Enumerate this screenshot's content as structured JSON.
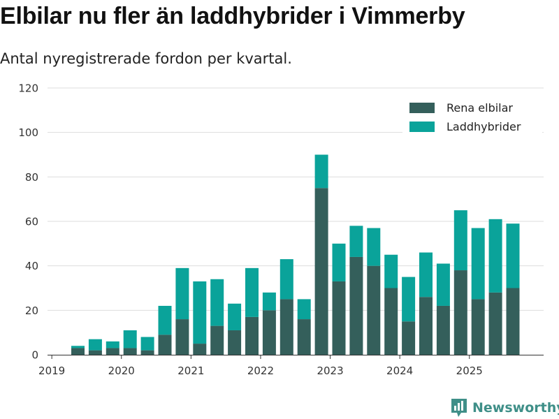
{
  "title": "Elbilar nu fler än laddhybrider i Vimmerby",
  "subtitle": "Antal nyregistrerade fordon per kvartal.",
  "brand": "Newsworthy",
  "colors": {
    "elbilar": "#345f5b",
    "laddhybrider": "#0aa39a",
    "grid": "#dddddd",
    "axis": "#333333"
  },
  "chart_data": {
    "type": "bar",
    "stacked": true,
    "title": "Elbilar nu fler än laddhybrider i Vimmerby",
    "xlabel": "",
    "ylabel": "",
    "ylim": [
      0,
      120
    ],
    "y_ticks": [
      0,
      20,
      40,
      60,
      80,
      100,
      120
    ],
    "x_tick_labels": [
      "2019",
      "2020",
      "2021",
      "2022",
      "2023",
      "2024",
      "2025"
    ],
    "legend_position": "top-right",
    "categories": [
      "2019 Q2",
      "2019 Q3",
      "2019 Q4",
      "2020 Q1",
      "2020 Q2",
      "2020 Q3",
      "2020 Q4",
      "2021 Q1",
      "2021 Q2",
      "2021 Q3",
      "2021 Q4",
      "2022 Q1",
      "2022 Q2",
      "2022 Q3",
      "2022 Q4",
      "2023 Q1",
      "2023 Q2",
      "2023 Q3",
      "2023 Q4",
      "2024 Q1",
      "2024 Q2",
      "2024 Q3",
      "2024 Q4",
      "2025 Q1",
      "2025 Q2",
      "2025 Q3"
    ],
    "series": [
      {
        "name": "Rena elbilar",
        "values": [
          3,
          2,
          3,
          3,
          2,
          9,
          16,
          5,
          13,
          11,
          17,
          20,
          25,
          16,
          75,
          33,
          44,
          40,
          30,
          15,
          26,
          22,
          38,
          25,
          28,
          30
        ]
      },
      {
        "name": "Laddhybrider",
        "values": [
          1,
          5,
          3,
          8,
          6,
          13,
          23,
          28,
          21,
          12,
          22,
          8,
          18,
          9,
          15,
          17,
          14,
          17,
          15,
          20,
          20,
          19,
          27,
          32,
          33,
          29
        ]
      }
    ]
  }
}
